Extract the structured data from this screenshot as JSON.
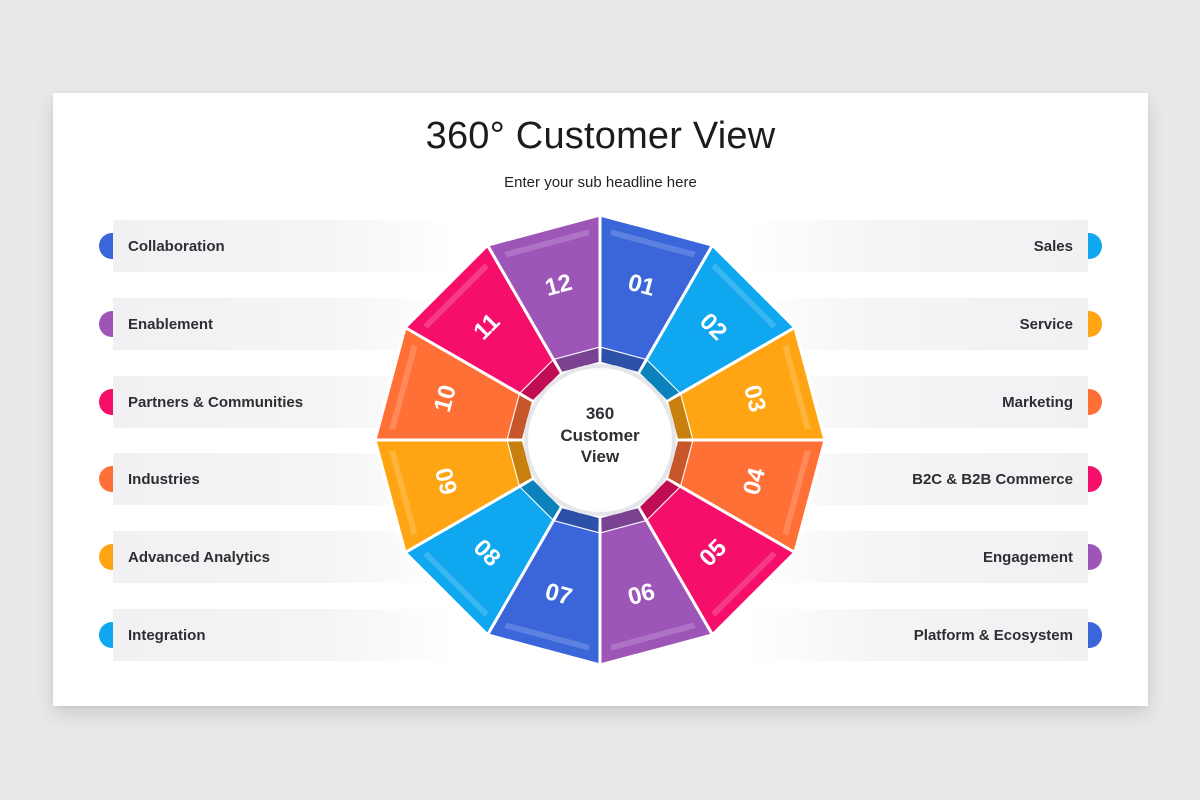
{
  "title": "360° Customer View",
  "subtitle": "Enter your sub headline here",
  "center": {
    "lines": [
      "360",
      "Customer",
      "View"
    ]
  },
  "colors": {
    "blue": "#3a66d9",
    "sky": "#0ea7f0",
    "orange": "#ffa412",
    "coral": "#ff7036",
    "pink": "#f50f6a",
    "purple": "#9d55b8"
  },
  "left_items": [
    {
      "label": "Collaboration",
      "color": "#3a66d9"
    },
    {
      "label": "Enablement",
      "color": "#9d55b8"
    },
    {
      "label": "Partners & Communities",
      "color": "#f50f6a"
    },
    {
      "label": "Industries",
      "color": "#ff7036"
    },
    {
      "label": "Advanced Analytics",
      "color": "#ffa412"
    },
    {
      "label": "Integration",
      "color": "#0ea7f0"
    }
  ],
  "right_items": [
    {
      "label": "Sales",
      "color": "#0ea7f0"
    },
    {
      "label": "Service",
      "color": "#ffa412"
    },
    {
      "label": "Marketing",
      "color": "#ff7036"
    },
    {
      "label": "B2C & B2B Commerce",
      "color": "#f50f6a"
    },
    {
      "label": "Engagement",
      "color": "#9d55b8"
    },
    {
      "label": "Platform & Ecosystem",
      "color": "#3a66d9"
    }
  ],
  "segments": [
    {
      "number": "01",
      "color": "#3a66d9"
    },
    {
      "number": "02",
      "color": "#0ea7f0"
    },
    {
      "number": "03",
      "color": "#ffa412"
    },
    {
      "number": "04",
      "color": "#ff7036"
    },
    {
      "number": "05",
      "color": "#f50f6a"
    },
    {
      "number": "06",
      "color": "#9d55b8"
    },
    {
      "number": "07",
      "color": "#3a66d9"
    },
    {
      "number": "08",
      "color": "#0ea7f0"
    },
    {
      "number": "09",
      "color": "#ffa412"
    },
    {
      "number": "10",
      "color": "#ff7036"
    },
    {
      "number": "11",
      "color": "#f50f6a"
    },
    {
      "number": "12",
      "color": "#9d55b8"
    }
  ]
}
